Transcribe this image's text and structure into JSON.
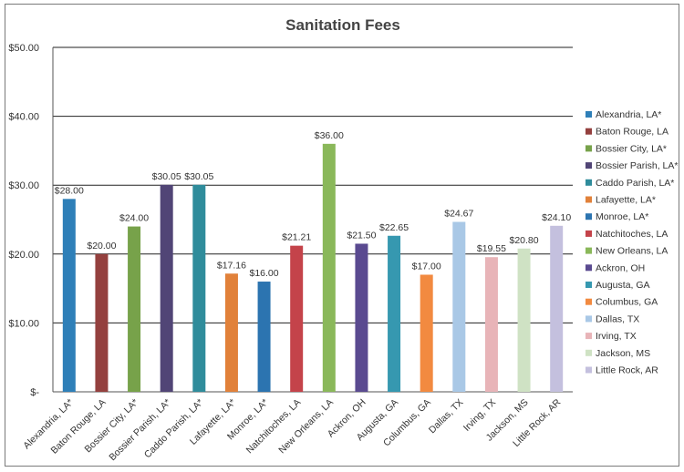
{
  "chart_data": {
    "type": "bar",
    "title": "Sanitation Fees",
    "xlabel": "",
    "ylabel": "",
    "ylim": [
      0,
      50
    ],
    "y_ticks": [
      {
        "value": 0,
        "label": "$-"
      },
      {
        "value": 10,
        "label": "$10.00"
      },
      {
        "value": 20,
        "label": "$20.00"
      },
      {
        "value": 30,
        "label": "$30.00"
      },
      {
        "value": 40,
        "label": "$40.00"
      },
      {
        "value": 50,
        "label": "$50.00"
      }
    ],
    "grid": true,
    "legend_position": "right",
    "categories": [
      "Alexandria, LA*",
      "Baton Rouge, LA",
      "Bossier City, LA*",
      "Bossier Parish, LA*",
      "Caddo Parish, LA*",
      "Lafayette, LA*",
      "Monroe, LA*",
      "Natchitoches, LA",
      "New Orleans, LA",
      "Ackron, OH",
      "Augusta, GA",
      "Columbus, GA",
      "Dallas, TX",
      "Irving, TX",
      "Jackson, MS",
      "Little Rock, AR"
    ],
    "values": [
      28.0,
      20.0,
      24.0,
      30.05,
      30.05,
      17.16,
      16.0,
      21.21,
      36.0,
      21.5,
      22.65,
      17.0,
      24.67,
      19.55,
      20.8,
      24.1
    ],
    "value_labels": [
      "$28.00",
      "$20.00",
      "$24.00",
      "$30.05",
      "$30.05",
      "$17.16",
      "$16.00",
      "$21.21",
      "$36.00",
      "$21.50",
      "$22.65",
      "$17.00",
      "$24.67",
      "$19.55",
      "$20.80",
      "$24.10"
    ],
    "colors": [
      "#2e7fb8",
      "#94403e",
      "#77a24a",
      "#514576",
      "#2f8c9b",
      "#e1813a",
      "#2c74b0",
      "#c4434a",
      "#8ab85a",
      "#5a4a90",
      "#3698b0",
      "#f28a40",
      "#a9c8e6",
      "#e8b4b8",
      "#cfe2c4",
      "#c4c0de"
    ]
  }
}
